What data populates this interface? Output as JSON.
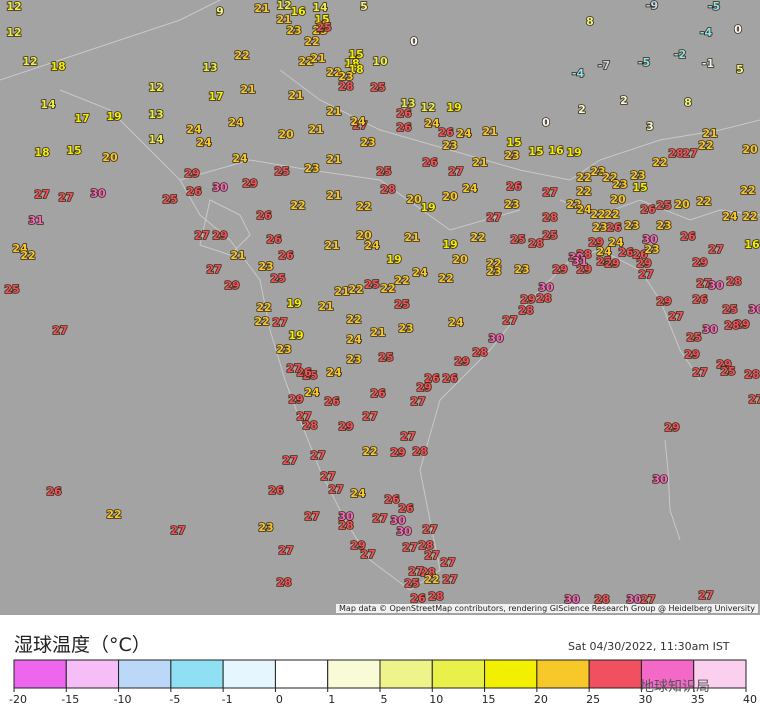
{
  "map": {
    "stations": [
      12,
      12,
      18,
      14,
      17,
      19,
      18,
      15,
      20,
      12,
      13,
      14,
      13,
      17,
      22,
      21,
      24,
      24,
      24,
      24,
      20,
      21,
      21,
      21,
      29,
      26,
      30,
      29,
      25,
      23,
      21,
      27,
      27,
      30,
      31,
      24,
      22,
      25,
      27,
      25,
      26,
      22,
      21,
      22,
      28,
      25,
      23,
      26,
      26,
      13,
      12,
      24,
      19,
      26,
      24,
      21,
      15,
      23,
      23,
      26,
      27,
      21,
      24,
      26,
      27,
      27,
      23,
      20,
      19,
      20,
      27,
      29,
      26,
      26,
      21,
      27,
      29,
      23,
      25,
      19,
      22,
      22,
      27,
      19,
      23,
      21,
      20,
      24,
      19,
      21,
      19,
      22,
      20,
      24,
      22,
      22,
      22,
      25,
      22,
      21,
      25,
      21,
      22,
      21,
      23,
      24,
      22,
      23,
      23,
      25,
      28,
      25,
      28,
      29,
      28,
      25,
      29,
      30,
      28,
      29,
      28,
      27,
      30,
      28,
      29,
      26,
      26,
      29,
      27,
      27,
      28,
      29,
      22,
      24,
      25,
      23,
      24,
      25,
      26,
      27,
      24,
      29,
      26,
      27,
      28,
      27,
      29,
      26,
      27,
      27,
      27,
      27,
      24,
      26,
      27,
      30,
      28,
      27,
      30,
      26,
      26,
      30,
      27,
      27,
      28,
      29,
      27,
      27,
      27,
      28,
      27,
      22,
      27,
      25,
      26,
      28,
      26,
      22,
      27,
      23,
      27,
      28,
      30,
      28,
      30,
      27,
      27,
      29,
      30,
      22,
      22,
      23,
      22,
      23,
      15,
      22,
      28,
      27,
      22,
      21,
      20,
      22,
      24,
      22,
      16,
      26,
      27,
      23,
      20,
      22,
      25,
      26,
      20,
      23,
      22,
      24,
      22,
      22,
      23,
      26,
      23,
      30,
      24,
      29,
      24,
      26,
      26,
      23,
      30,
      31,
      29,
      29,
      27,
      29,
      27,
      30,
      28,
      29,
      26,
      25,
      30,
      29,
      30,
      28,
      27,
      25,
      29,
      29,
      25,
      28,
      27,
      27,
      12,
      9,
      21,
      21,
      12,
      16,
      14,
      15,
      23,
      23,
      22,
      25,
      5,
      15,
      18,
      10,
      18,
      22,
      23,
      22,
      21,
      28,
      25,
      0,
      8,
      0,
      2,
      2,
      3,
      8,
      -4,
      -7,
      -5,
      -2,
      -1,
      5,
      -4,
      0,
      -9,
      -5,
      27,
      24,
      15,
      16,
      19
    ]
  },
  "legend": {
    "title": "湿球温度（°C）",
    "timestamp": "Sat 04/30/2022, 11:30am IST",
    "ticks": [
      -20,
      -15,
      -10,
      -5,
      -1,
      0,
      1,
      5,
      10,
      15,
      20,
      25,
      30,
      35,
      40
    ],
    "colors": [
      "#ee66ee",
      "#f6bef6",
      "#bcd8f8",
      "#8ee0f2",
      "#e6f6ff",
      "#ffffff",
      "#f8fbd6",
      "#eef48a",
      "#eaf04a",
      "#f2f000",
      "#f6c82a",
      "#f05060",
      "#f468c8",
      "#fbd0ee"
    ]
  },
  "attribution": "Map data © OpenStreetMap contributors, rendering GIScience Research Group @ Heidelberg University",
  "watermark": "地球知识局"
}
